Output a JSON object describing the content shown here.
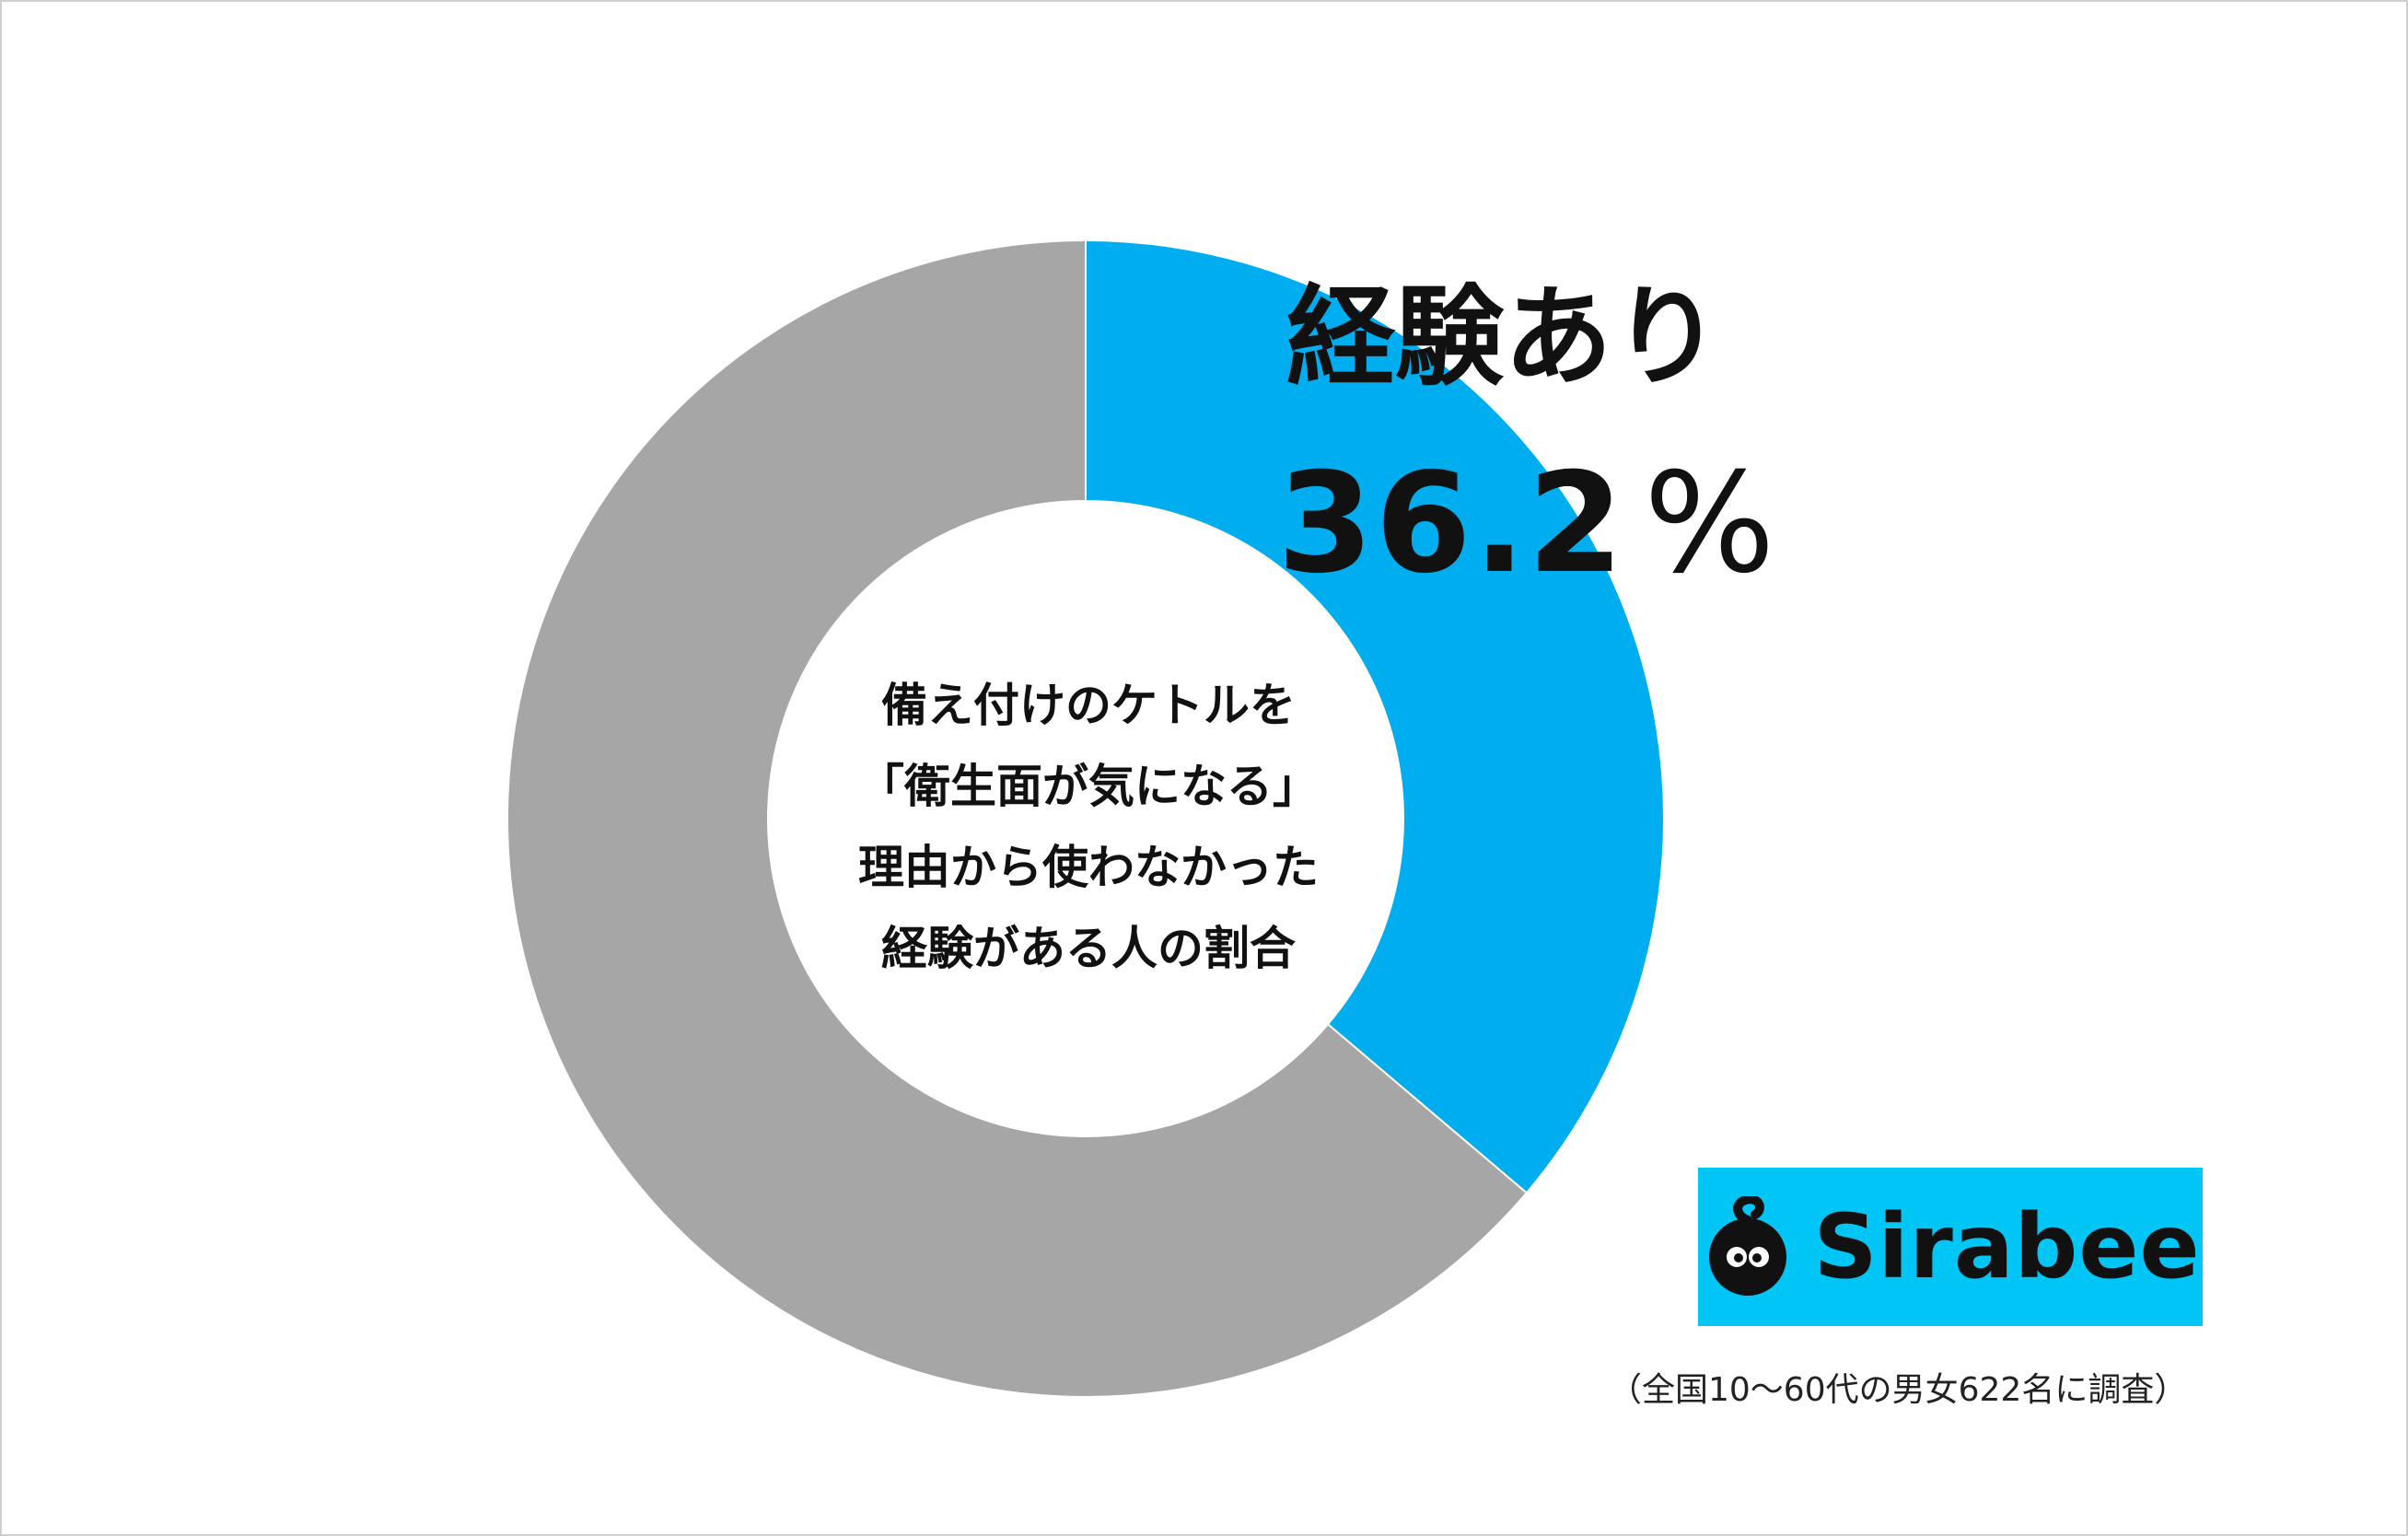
{
  "chart_data": {
    "type": "pie",
    "title": "",
    "center_label": [
      "備え付けのケトルを",
      "「衛生面が気になる」",
      "理由から使わなかった",
      "経験がある人の割合"
    ],
    "slices": [
      {
        "name": "経験あり",
        "value": 36.2,
        "color": "#00adef"
      },
      {
        "name": "",
        "value": 63.8,
        "color": "#a6a6a6"
      }
    ],
    "value_label": "36.2",
    "unit": "%",
    "legend": "none"
  },
  "logo": {
    "text": "Sirabee"
  },
  "footnote": "（全国10〜60代の男女622名に調査）"
}
